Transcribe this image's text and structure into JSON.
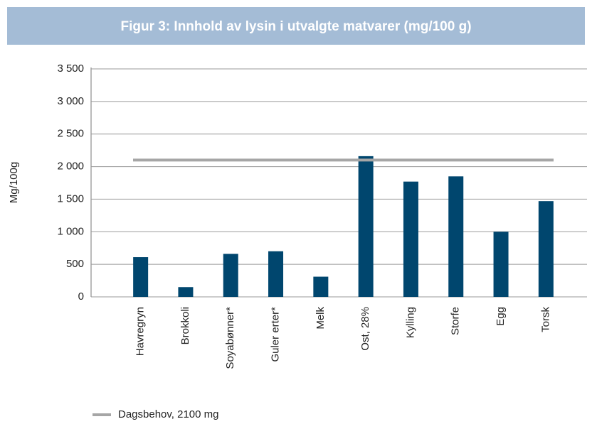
{
  "chart_data": {
    "type": "bar",
    "title": "Figur 3: Innhold av lysin i utvalgte matvarer (mg/100 g)",
    "ylabel": "Mg/100g",
    "categories": [
      "Havregryn",
      "Brokkoli",
      "Soyabønner*",
      "Guler erter*",
      "Melk",
      "Ost, 28%",
      "Kylling",
      "Storfe",
      "Egg",
      "Torsk"
    ],
    "values": [
      610,
      150,
      660,
      700,
      310,
      2160,
      1770,
      1850,
      1000,
      1470
    ],
    "color": "#00466e",
    "reference_line": {
      "label": "Dagsbehov, 2100 mg",
      "value": 2100,
      "color": "#a6a6a6"
    },
    "legend": "bottom-left",
    "ylim": [
      0,
      3500
    ],
    "yticks": [
      0,
      500,
      {
        "value": 1000,
        "label": "1 000"
      },
      {
        "value": 1500,
        "label": "1 500"
      },
      {
        "value": 2000,
        "label": "2 000"
      },
      {
        "value": 2500,
        "label": "2 500"
      },
      {
        "value": 3000,
        "label": "3 000"
      },
      {
        "value": 3500,
        "label": "3 500"
      }
    ],
    "grid": true
  }
}
